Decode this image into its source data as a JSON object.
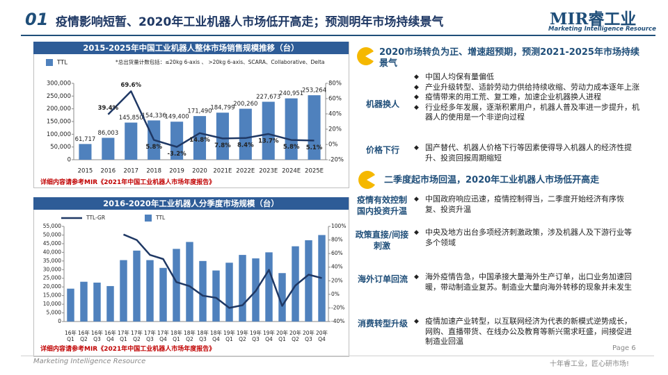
{
  "header": {
    "number": "01",
    "title": "疫情影响短暂、2020年工业机器人市场低开高走；预测明年市场持续景气",
    "logo": "MIR睿工业",
    "tagline": "Marketing Intelligence Resource"
  },
  "chart_data": [
    {
      "type": "bar",
      "title": "2015-2025年中国工业机器人整体市场销售规模推移（台）",
      "note": "*总出货量计数包括：≤20kg 6-axis 、 >20kg 6-axis、SCARA、Collaborative、Delta",
      "source": "详细内容请参考MIR《2021年中国工业机器人市场年度报告》",
      "categories": [
        "2015",
        "2016",
        "2017",
        "2018",
        "2019",
        "2020",
        "2021E",
        "2022E",
        "2023E",
        "2024E",
        "2025E"
      ],
      "series": [
        {
          "name": "TTL",
          "color": "#4f81bd",
          "values": [
            61717,
            86003,
            145850,
            154336,
            149400,
            171490,
            184799,
            200260,
            227673,
            240951,
            253264
          ],
          "value_labels": [
            "61,717",
            "86,003",
            "145,850",
            "154,336",
            "149,400",
            "171,490",
            "184,799",
            "200,260",
            "227,673",
            "240,951",
            "253,264"
          ]
        },
        {
          "type": "line",
          "axis": "y2",
          "color": "#1f3864",
          "values": [
            null,
            39.4,
            69.6,
            5.8,
            -3.2,
            14.8,
            7.8,
            8.4,
            13.7,
            5.8,
            5.1
          ],
          "value_labels": [
            null,
            "39.4%",
            "69.6%",
            "5.8%",
            "-3.2%",
            "14.8%",
            "7.8%",
            "8.4%",
            "13.7%",
            "5.8%",
            "5.1%"
          ]
        }
      ],
      "ylim": [
        0,
        300000
      ],
      "yticks": [
        0,
        {
          "value": 50000,
          "label": "50,000"
        },
        {
          "value": 100000,
          "label": "100,000"
        },
        {
          "value": 150000,
          "label": "150,000"
        },
        {
          "value": 200000,
          "label": "200,000"
        },
        {
          "value": 250000,
          "label": "250,000"
        },
        {
          "value": 300000,
          "label": "300,000"
        }
      ],
      "y2lim": [
        -20,
        80
      ],
      "y2ticks": [
        {
          "value": -20,
          "label": "-20%"
        },
        {
          "value": 0,
          "label": "0%"
        },
        {
          "value": 20,
          "label": "20%"
        },
        {
          "value": 40,
          "label": "40%"
        },
        {
          "value": 60,
          "label": "60%"
        },
        {
          "value": 80,
          "label": "80%"
        }
      ],
      "grid": false
    },
    {
      "type": "bar",
      "title": "2016-2020年工业机器人分季度市场规模（台）",
      "source": "详细内容请参考MIR《2021年中国工业机器人市场年度报告》",
      "categories": [
        "16年\nQ1",
        "16年\nQ2",
        "16年\nQ3",
        "16年\nQ4",
        "17年\nQ1",
        "17年\nQ2",
        "17年\nQ3",
        "17年\nQ4",
        "18年\nQ1",
        "18年\nQ2",
        "18年\nQ3",
        "18年\nQ4",
        "19年\nQ1",
        "19年\nQ2",
        "19年\nQ3",
        "19年\nQ4",
        "20年\nQ1",
        "20年\nQ2",
        "20年\nQ3",
        "20年\nQ4"
      ],
      "series": [
        {
          "name": "TTL-GR",
          "type": "line",
          "axis": "y2",
          "color": "#1f3864",
          "values": [
            null,
            null,
            null,
            null,
            88,
            80,
            58,
            52,
            18,
            12,
            -2,
            -5,
            -20,
            -16,
            5,
            36,
            -17,
            13,
            29,
            24
          ]
        },
        {
          "name": "TTL",
          "color": "#4f81bd",
          "values": [
            19000,
            23000,
            22500,
            20500,
            35500,
            41000,
            35500,
            31000,
            42000,
            46000,
            35000,
            29500,
            34000,
            38500,
            36500,
            40000,
            28000,
            43500,
            47000,
            50000
          ]
        }
      ],
      "ylim": [
        0,
        55000
      ],
      "yticks": [
        0,
        {
          "value": 5000,
          "label": "5,000"
        },
        {
          "value": 10000,
          "label": "10,000"
        },
        {
          "value": 15000,
          "label": "15,000"
        },
        {
          "value": 20000,
          "label": "20,000"
        },
        {
          "value": 25000,
          "label": "25,000"
        },
        {
          "value": 30000,
          "label": "30,000"
        },
        {
          "value": 35000,
          "label": "35,000"
        },
        {
          "value": 40000,
          "label": "40,000"
        },
        {
          "value": 45000,
          "label": "45,000"
        },
        {
          "value": 50000,
          "label": "50,000"
        },
        {
          "value": 55000,
          "label": "55,000"
        }
      ],
      "y2lim": [
        -40,
        100
      ],
      "y2ticks": [
        {
          "value": -40,
          "label": "-40%"
        },
        {
          "value": -20,
          "label": "-20%"
        },
        {
          "value": 0,
          "label": "0%"
        },
        {
          "value": 20,
          "label": "20%"
        },
        {
          "value": 40,
          "label": "40%"
        },
        {
          "value": 60,
          "label": "60%"
        },
        {
          "value": 80,
          "label": "80%"
        },
        {
          "value": 100,
          "label": "100%"
        }
      ],
      "grid": false
    }
  ],
  "sections": [
    {
      "title": "2020市场转负为正、增速超预期，预测2021-2025年市场持续景气",
      "rows": [
        {
          "label": "机器换人",
          "bullets": [
            "中国人均保有量偏低",
            "产业升级转型、适龄劳动力供给持续收缩、劳动力成本逐年上涨",
            "疫情带来的用工荒、复工难，加速企业机器换人进程",
            "行业经多年发展，逐渐积累用户，机器人普及率进一步提升，机器人的使用是一个非逆向过程"
          ]
        },
        {
          "label": "价格下行",
          "bullets": [
            "国产替代、机器人价格下行等因素使得导入机器人的经济性提升、投资回报周期缩短"
          ]
        }
      ]
    },
    {
      "title": "二季度起市场回温，2020年工业机器人市场低开高走",
      "rows": [
        {
          "label": "疫情有效控制国内投资升温",
          "bullets": [
            "中国政府响应迅速，疫情控制得当，二季度开始经济有序恢复、投资升温"
          ]
        },
        {
          "label": "政策直接/间接刺激",
          "bullets": [
            "中央及地方出台多项经济刺激政策，涉及机器人及下游行业等多个领域"
          ]
        },
        {
          "label": "海外订单回流",
          "bullets": [
            "海外疫情告急，中国承接大量海外生产订单，出口业务加速回暖，带动制造业复苏。制造业大量向海外转移的现象并未发生"
          ]
        },
        {
          "label": "消费转型升级",
          "bullets": [
            "疫情加速产业转型，以互联网经济为代表的新模式逆势成长，网购、直播带货、在线办公及教育等新兴需求旺盛，间接促进制造业回温"
          ]
        }
      ]
    }
  ],
  "footer": {
    "left": "Marketing Intelligence Resource",
    "page": "Page 6",
    "slogan": "十年睿工业，匠心研市场!"
  }
}
